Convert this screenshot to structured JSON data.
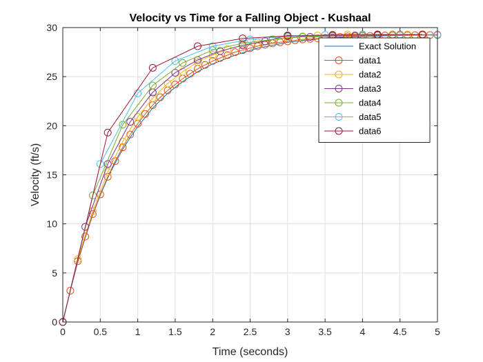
{
  "chart_data": {
    "type": "line",
    "title": "Velocity vs Time for a Falling Object - Kushaal",
    "xlabel": "Time (seconds)",
    "ylabel": "Velocity (ft/s)",
    "xlim": [
      0,
      5
    ],
    "ylim": [
      0,
      30
    ],
    "xticks": [
      0,
      0.5,
      1,
      1.5,
      2,
      2.5,
      3,
      3.5,
      4,
      4.5,
      5
    ],
    "xtick_labels": [
      "0",
      "0.5",
      "1",
      "1.5",
      "2",
      "2.5",
      "3",
      "3.5",
      "4",
      "4.5",
      "5"
    ],
    "yticks": [
      0,
      5,
      10,
      15,
      20,
      25,
      30
    ],
    "ytick_labels": [
      "0",
      "5",
      "10",
      "15",
      "20",
      "25",
      "30"
    ],
    "grid": true,
    "legend_position": "top-right",
    "series": [
      {
        "name": "Exact Solution",
        "color": "#0072BD",
        "marker": "none",
        "x": [
          0,
          0.1,
          0.2,
          0.3,
          0.4,
          0.5,
          0.6,
          0.7,
          0.8,
          0.9,
          1.0,
          1.2,
          1.4,
          1.6,
          1.8,
          2.0,
          2.3,
          2.6,
          3.0,
          3.5,
          4.0,
          4.5,
          5.0
        ],
        "y": [
          0,
          3.2,
          6.1,
          8.6,
          10.9,
          12.9,
          14.7,
          16.2,
          17.6,
          18.8,
          19.9,
          21.8,
          23.3,
          24.5,
          25.5,
          26.3,
          27.2,
          27.9,
          28.5,
          28.9,
          29.1,
          29.2,
          29.25
        ]
      },
      {
        "name": "data1",
        "color": "#D95319",
        "marker": "circle",
        "x": [
          0,
          0.1,
          0.2,
          0.3,
          0.4,
          0.5,
          0.6,
          0.7,
          0.8,
          0.9,
          1.0,
          1.1,
          1.2,
          1.3,
          1.4,
          1.5,
          1.6,
          1.7,
          1.8,
          1.9,
          2.0,
          2.1,
          2.2,
          2.3,
          2.4,
          2.5,
          2.6,
          2.7,
          2.8,
          2.9,
          3.0,
          3.1,
          3.2,
          3.3,
          3.4,
          3.5,
          3.6,
          3.7,
          3.8,
          3.9,
          4.0,
          4.1,
          4.2,
          4.3,
          4.4,
          4.5,
          4.6,
          4.7,
          4.8,
          4.9,
          5.0
        ],
        "y": [
          0,
          3.2,
          6.2,
          8.7,
          11.0,
          13.0,
          14.8,
          16.4,
          17.8,
          19.1,
          20.2,
          21.2,
          22.1,
          22.9,
          23.6,
          24.2,
          24.8,
          25.3,
          25.8,
          26.2,
          26.6,
          26.9,
          27.2,
          27.5,
          27.7,
          27.9,
          28.1,
          28.25,
          28.4,
          28.5,
          28.6,
          28.7,
          28.8,
          28.85,
          28.9,
          28.95,
          29.0,
          29.05,
          29.1,
          29.1,
          29.15,
          29.15,
          29.2,
          29.2,
          29.2,
          29.22,
          29.22,
          29.23,
          29.23,
          29.24,
          29.24
        ]
      },
      {
        "name": "data2",
        "color": "#EDB120",
        "marker": "circle",
        "x": [
          0,
          0.2,
          0.4,
          0.6,
          0.8,
          1.0,
          1.2,
          1.4,
          1.6,
          1.8,
          2.0,
          2.2,
          2.4,
          2.6,
          2.8,
          3.0,
          3.2,
          3.4,
          3.6,
          3.8,
          4.0,
          4.2,
          4.4,
          4.6,
          4.8,
          5.0
        ],
        "y": [
          0,
          6.4,
          11.3,
          15.3,
          18.4,
          20.9,
          22.8,
          24.3,
          25.5,
          26.5,
          27.2,
          27.8,
          28.2,
          28.5,
          28.8,
          29.0,
          29.1,
          29.2,
          29.25,
          29.3,
          29.3,
          29.3,
          29.3,
          29.3,
          29.3,
          29.3
        ]
      },
      {
        "name": "data3",
        "color": "#7E2F8E",
        "marker": "circle",
        "x": [
          0,
          0.3,
          0.6,
          0.9,
          1.2,
          1.5,
          1.8,
          2.1,
          2.4,
          2.7,
          3.0,
          3.3,
          3.6,
          3.9,
          4.2,
          4.5,
          4.8
        ],
        "y": [
          0,
          9.7,
          16.1,
          20.4,
          23.4,
          25.4,
          26.7,
          27.6,
          28.2,
          28.6,
          29.2,
          29.05,
          29.15,
          29.2,
          29.25,
          29.3,
          29.3
        ]
      },
      {
        "name": "data4",
        "color": "#77AC30",
        "marker": "circle",
        "x": [
          0,
          0.4,
          0.8,
          1.2,
          1.6,
          2.0,
          2.4,
          2.8,
          3.2,
          3.6,
          4.0,
          4.4,
          4.8
        ],
        "y": [
          0,
          12.9,
          20.1,
          24.1,
          26.4,
          27.7,
          28.4,
          28.8,
          29.05,
          29.2,
          29.25,
          29.3,
          29.3
        ]
      },
      {
        "name": "data5",
        "color": "#4DBEEE",
        "marker": "circle",
        "x": [
          0,
          0.5,
          1.0,
          1.5,
          2.0,
          2.5,
          3.0,
          3.5,
          4.0,
          4.5,
          5.0
        ],
        "y": [
          0,
          16.1,
          23.3,
          26.6,
          28.1,
          28.8,
          29.1,
          29.25,
          29.3,
          29.3,
          29.3
        ]
      },
      {
        "name": "data6",
        "color": "#A2142F",
        "marker": "circle",
        "x": [
          0,
          0.6,
          1.2,
          1.8,
          2.4,
          3.0,
          3.6,
          4.2,
          4.8
        ],
        "y": [
          0,
          19.3,
          25.9,
          28.1,
          28.9,
          29.15,
          29.25,
          29.3,
          29.3
        ]
      }
    ]
  }
}
